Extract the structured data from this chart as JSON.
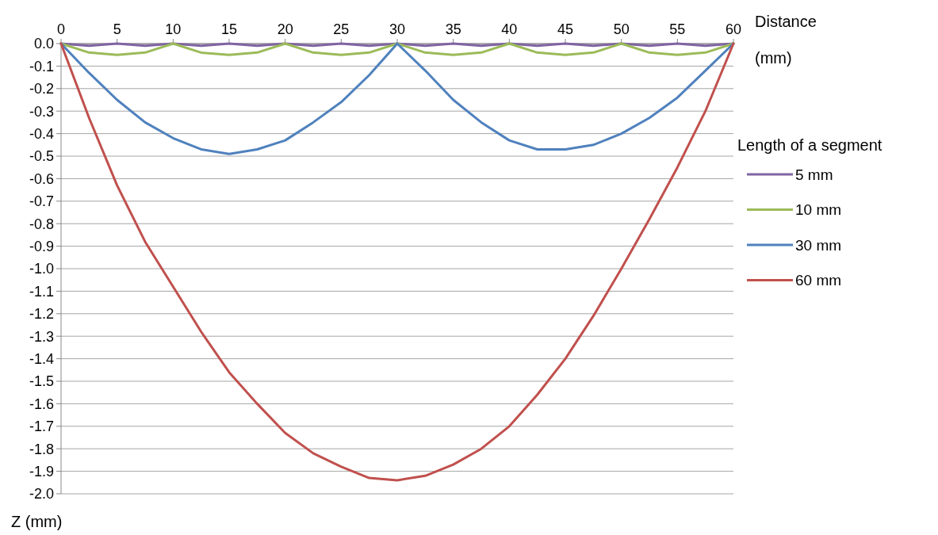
{
  "chart_data": {
    "type": "line",
    "xlabel": "Distance (mm)",
    "ylabel": "Z (mm)",
    "legend_title": "Length of a segment",
    "legend": "right",
    "grid": "y",
    "marker": "none",
    "line_style": "solid",
    "x": [
      0,
      2.5,
      5,
      7.5,
      10,
      12.5,
      15,
      17.5,
      20,
      22.5,
      25,
      27.5,
      30,
      32.5,
      35,
      37.5,
      40,
      42.5,
      45,
      47.5,
      50,
      52.5,
      55,
      57.5,
      60
    ],
    "xlim": [
      0,
      60
    ],
    "xticks": [
      0,
      5,
      10,
      15,
      20,
      25,
      30,
      35,
      40,
      45,
      50,
      55,
      60
    ],
    "ylim": [
      -2,
      0
    ],
    "yticks": [
      {
        "value": 0,
        "label": "0.0"
      },
      {
        "value": -0.1,
        "label": "-0.1"
      },
      {
        "value": -0.2,
        "label": "-0.2"
      },
      {
        "value": -0.3,
        "label": "-0.3"
      },
      {
        "value": -0.4,
        "label": "-0.4"
      },
      {
        "value": -0.5,
        "label": "-0.5"
      },
      {
        "value": -0.6,
        "label": "-0.6"
      },
      {
        "value": -0.7,
        "label": "-0.7"
      },
      {
        "value": -0.8,
        "label": "-0.8"
      },
      {
        "value": -0.9,
        "label": "-0.9"
      },
      {
        "value": -1,
        "label": "-1.0"
      },
      {
        "value": -1.1,
        "label": "-1.1"
      },
      {
        "value": -1.2,
        "label": "-1.2"
      },
      {
        "value": -1.3,
        "label": "-1.3"
      },
      {
        "value": -1.4,
        "label": "-1.4"
      },
      {
        "value": -1.5,
        "label": "-1.5"
      },
      {
        "value": -1.6,
        "label": "-1.6"
      },
      {
        "value": -1.7,
        "label": "-1.7"
      },
      {
        "value": -1.8,
        "label": "-1.8"
      },
      {
        "value": -1.9,
        "label": "-1.9"
      },
      {
        "value": -2,
        "label": "-2.0"
      }
    ],
    "series": [
      {
        "name": "5 mm",
        "color": "#8064a2",
        "values": [
          0,
          -0.01,
          0,
          -0.01,
          0,
          -0.01,
          0,
          -0.01,
          0,
          -0.01,
          0,
          -0.01,
          0,
          -0.01,
          0,
          -0.01,
          0,
          -0.01,
          0,
          -0.01,
          0,
          -0.01,
          0,
          -0.01,
          0
        ]
      },
      {
        "name": "10 mm",
        "color": "#9bbb59",
        "values": [
          0,
          -0.04,
          -0.05,
          -0.04,
          0,
          -0.04,
          -0.05,
          -0.04,
          0,
          -0.04,
          -0.05,
          -0.04,
          0,
          -0.04,
          -0.05,
          -0.04,
          0,
          -0.04,
          -0.05,
          -0.04,
          0,
          -0.04,
          -0.05,
          -0.04,
          0
        ]
      },
      {
        "name": "30 mm",
        "color": "#4f81bd",
        "values": [
          0,
          -0.13,
          -0.25,
          -0.35,
          -0.42,
          -0.47,
          -0.49,
          -0.47,
          -0.43,
          -0.35,
          -0.26,
          -0.14,
          0,
          -0.12,
          -0.25,
          -0.35,
          -0.43,
          -0.47,
          -0.47,
          -0.45,
          -0.4,
          -0.33,
          -0.24,
          -0.12,
          0
        ]
      },
      {
        "name": "60 mm",
        "color": "#c0504d",
        "values": [
          0,
          -0.33,
          -0.63,
          -0.88,
          -1.08,
          -1.28,
          -1.46,
          -1.6,
          -1.73,
          -1.82,
          -1.88,
          -1.93,
          -1.94,
          -1.92,
          -1.87,
          -1.8,
          -1.7,
          -1.56,
          -1.4,
          -1.21,
          -1,
          -0.78,
          -0.55,
          -0.3,
          0
        ]
      }
    ]
  }
}
